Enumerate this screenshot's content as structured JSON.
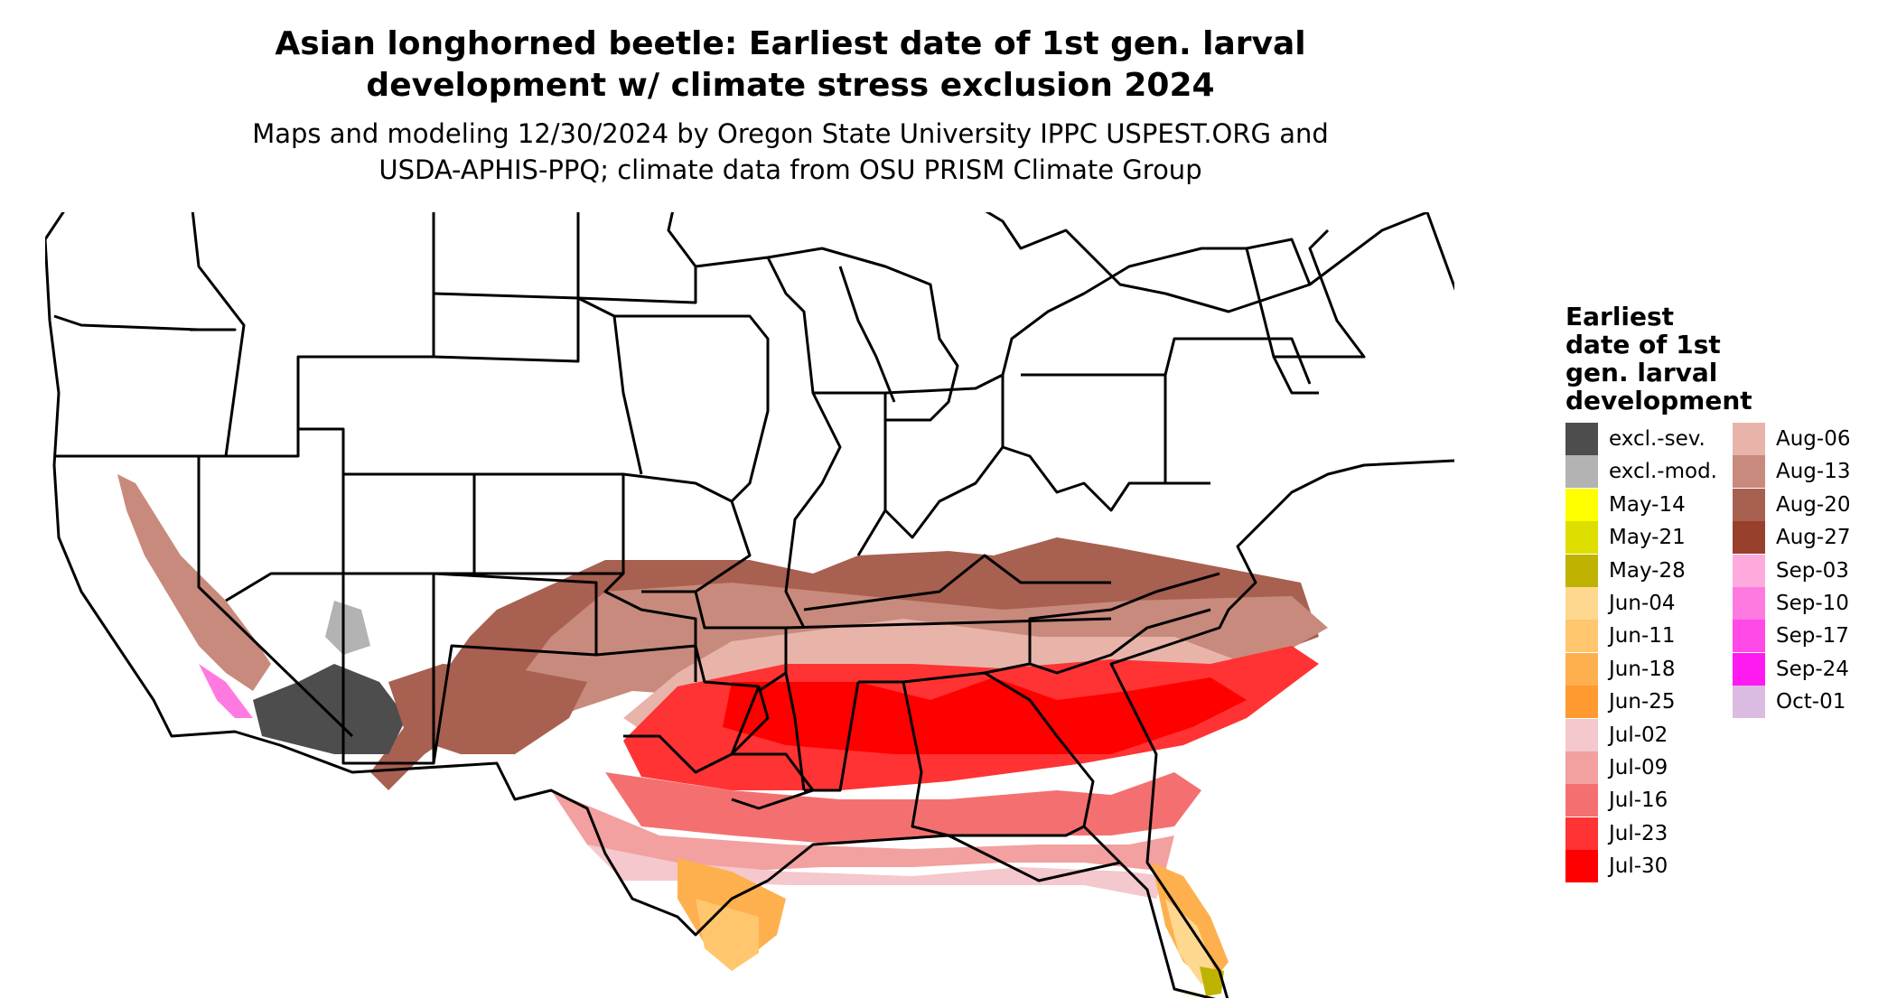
{
  "title_lines": [
    "Asian longhorned beetle: Earliest date of 1st gen. larval",
    "development w/ climate stress exclusion 2024"
  ],
  "subtitle_lines": [
    "Maps and modeling 12/30/2024 by Oregon State University IPPC USPEST.ORG and",
    "USDA-APHIS-PPQ; climate data from OSU PRISM Climate Group"
  ],
  "legend": {
    "title_lines": [
      "Earliest",
      "date of 1st",
      "gen. larval",
      "development"
    ],
    "items": [
      {
        "label": "excl.-sev.",
        "color": "#4d4d4d"
      },
      {
        "label": "excl.-mod.",
        "color": "#b3b3b3"
      },
      {
        "label": "May-14",
        "color": "#ffff00"
      },
      {
        "label": "May-21",
        "color": "#dede00"
      },
      {
        "label": "May-28",
        "color": "#bdb300"
      },
      {
        "label": "Jun-04",
        "color": "#ffd890"
      },
      {
        "label": "Jun-11",
        "color": "#ffc66e"
      },
      {
        "label": "Jun-18",
        "color": "#ffb04e"
      },
      {
        "label": "Jun-25",
        "color": "#ff9a30"
      },
      {
        "label": "Jul-02",
        "color": "#f4c8cc"
      },
      {
        "label": "Jul-09",
        "color": "#f2a0a0"
      },
      {
        "label": "Jul-16",
        "color": "#f47070"
      },
      {
        "label": "Jul-23",
        "color": "#ff3333"
      },
      {
        "label": "Jul-30",
        "color": "#ff0000"
      },
      {
        "label": "Aug-06",
        "color": "#e8b4aa"
      },
      {
        "label": "Aug-13",
        "color": "#c88a7c"
      },
      {
        "label": "Aug-20",
        "color": "#a86050"
      },
      {
        "label": "Aug-27",
        "color": "#98402c"
      },
      {
        "label": "Sep-03",
        "color": "#ffaadd"
      },
      {
        "label": "Sep-10",
        "color": "#ff7ae0"
      },
      {
        "label": "Sep-17",
        "color": "#ff4ae8"
      },
      {
        "label": "Sep-24",
        "color": "#ff1af2"
      },
      {
        "label": "Oct-01",
        "color": "#dcbbe2"
      }
    ]
  }
}
